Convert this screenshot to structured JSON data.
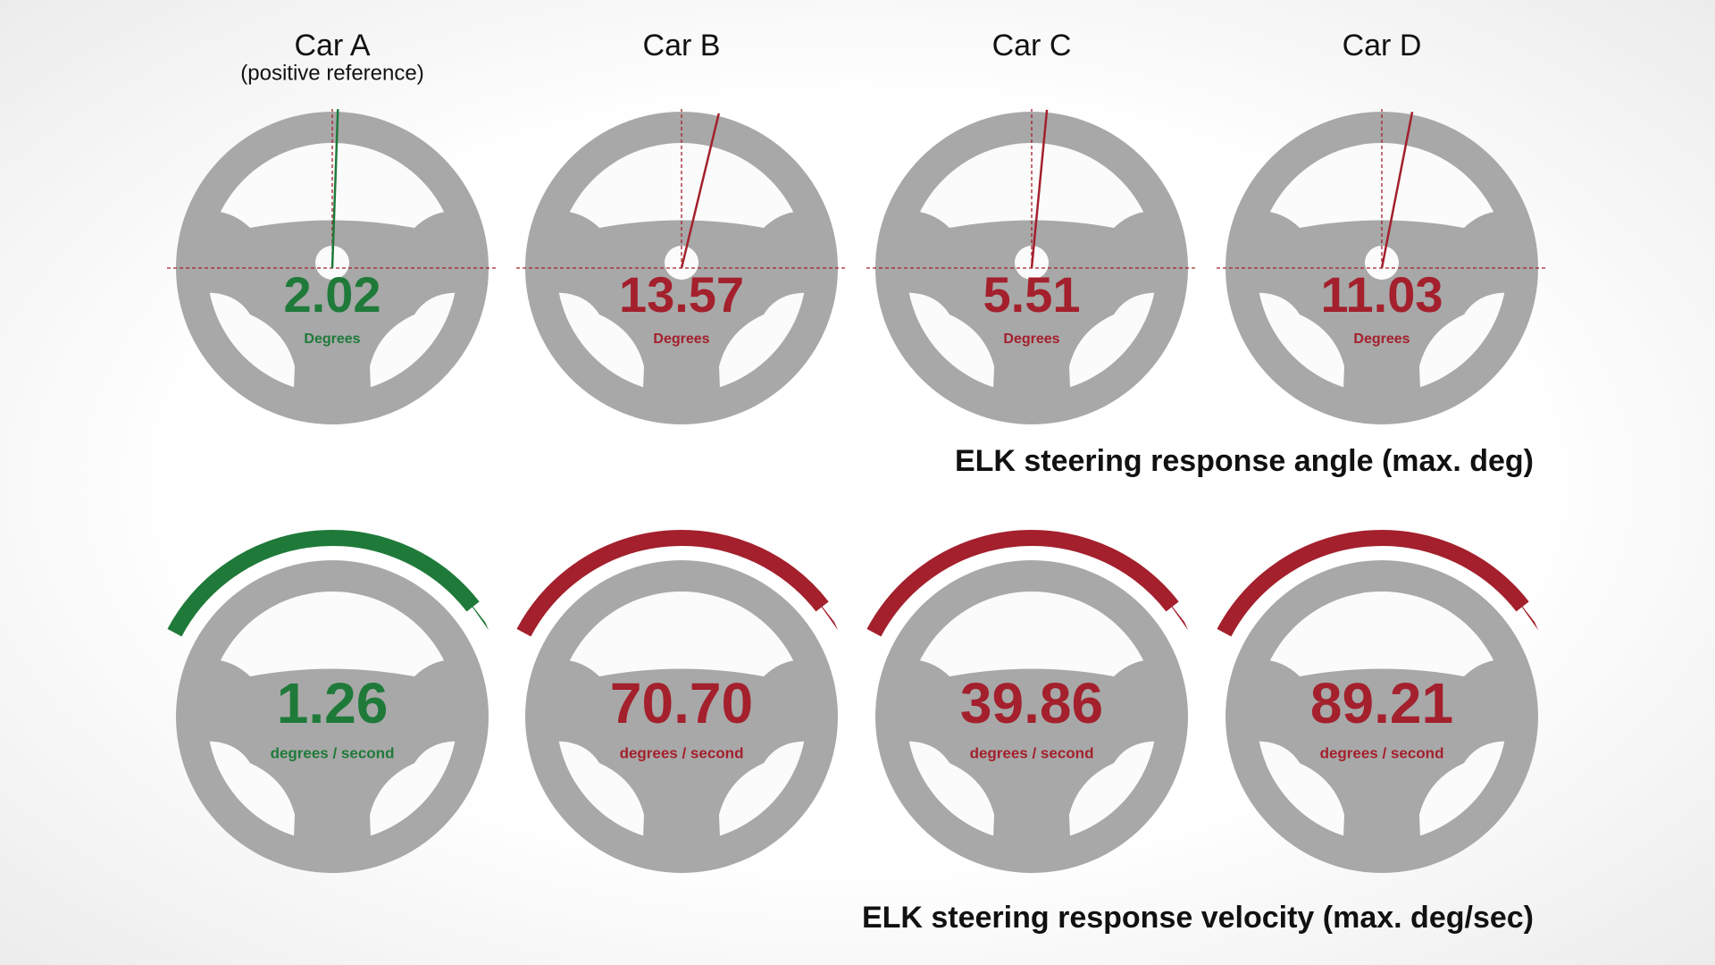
{
  "angle_caption": "ELK steering response angle (max. deg)",
  "velocity_caption": "ELK steering response velocity (max. deg/sec)",
  "angle_unit": "Degrees",
  "velocity_unit": "degrees / second",
  "cars": [
    {
      "name": "Car A",
      "note": "(positive reference)",
      "color": "#1f7a3a",
      "angle": 2.02,
      "velocity": 1.26
    },
    {
      "name": "Car B",
      "color": "#a3202c",
      "angle": 13.57,
      "velocity": {
        "value": 70.7,
        "label": "70.70"
      }
    },
    {
      "name": "Car C",
      "color": "#a3202c",
      "angle": 5.51,
      "velocity": 39.86
    },
    {
      "name": "Car D",
      "color": "#a3202c",
      "angle": 11.03,
      "velocity": 89.21
    }
  ]
}
